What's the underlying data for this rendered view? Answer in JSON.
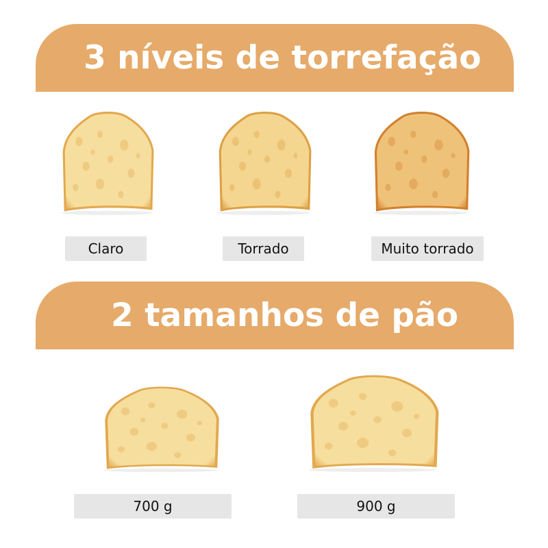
{
  "sections": [
    {
      "title": "3 níveis de torrefação",
      "items": [
        {
          "label": "Claro",
          "shade": "#F6DE9E",
          "crust": "#E2A84E"
        },
        {
          "label": "Torrado",
          "shade": "#F4D690",
          "crust": "#DDA044"
        },
        {
          "label": "Muito torrado",
          "shade": "#EFC27A",
          "crust": "#D2812E"
        }
      ]
    },
    {
      "title": "2 tamanhos de pão",
      "items": [
        {
          "label": "700 g",
          "shade": "#F6DE9E",
          "crust": "#E2A84E"
        },
        {
          "label": "900 g",
          "shade": "#F6DE9E",
          "crust": "#E2A84E"
        }
      ]
    }
  ],
  "colors": {
    "banner": "#E6AA6A",
    "label_bg": "#E6E6E6"
  }
}
